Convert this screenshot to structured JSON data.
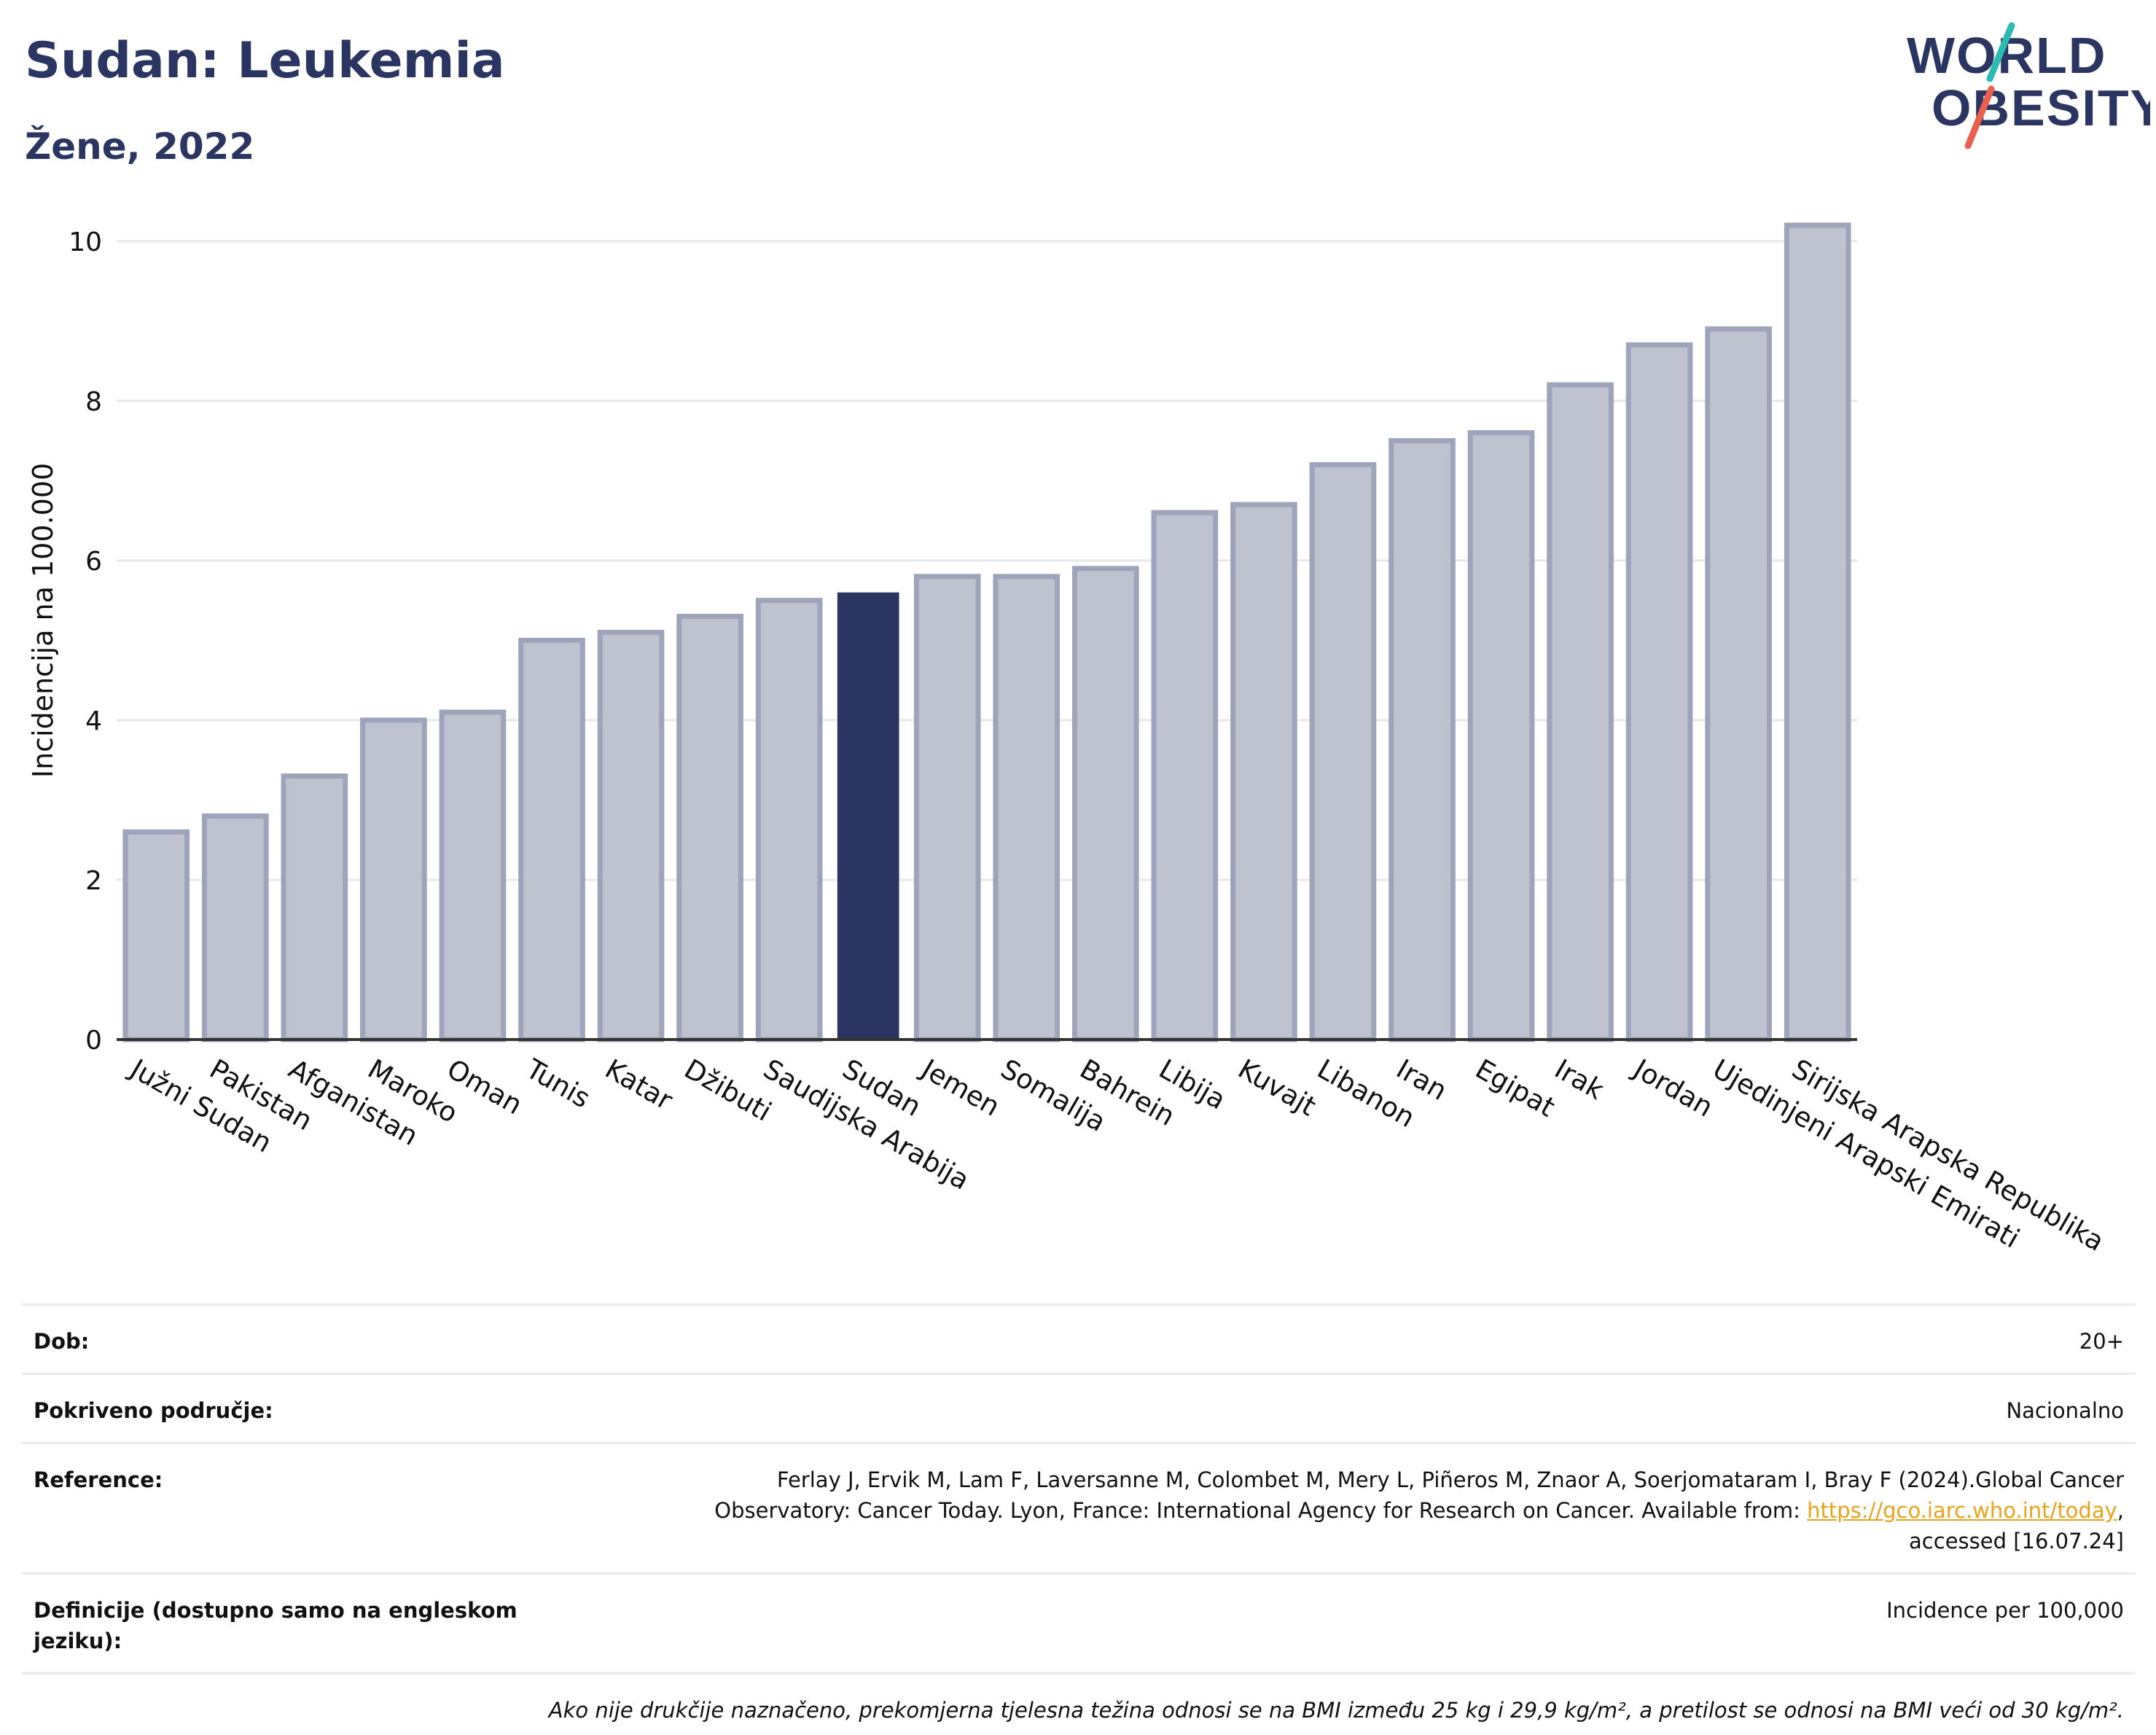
{
  "header": {
    "title": "Sudan: Leukemia",
    "subtitle": "Žene, 2022",
    "logo_line1": "WORLD",
    "logo_line2": "OBESITY"
  },
  "chart_data": {
    "type": "bar",
    "title": "Sudan: Leukemia",
    "subtitle": "Žene, 2022",
    "xlabel": "",
    "ylabel": "Incidencija na 100.000",
    "ylim": [
      0,
      10.5
    ],
    "yticks": [
      0,
      2,
      4,
      6,
      8,
      10
    ],
    "grid": true,
    "highlight": "Sudan",
    "categories": [
      "Južni Sudan",
      "Pakistan",
      "Afganistan",
      "Maroko",
      "Oman",
      "Tunis",
      "Katar",
      "Džibuti",
      "Saudijska Arabija",
      "Sudan",
      "Jemen",
      "Somalija",
      "Bahrein",
      "Libija",
      "Kuvajt",
      "Libanon",
      "Iran",
      "Egipat",
      "Irak",
      "Jordan",
      "Ujedinjeni Arapski Emirati",
      "Sirijska Arapska Republika"
    ],
    "values": [
      2.6,
      2.8,
      3.3,
      4.0,
      4.1,
      5.0,
      5.1,
      5.3,
      5.5,
      5.6,
      5.8,
      5.8,
      5.9,
      6.6,
      6.7,
      7.2,
      7.5,
      7.6,
      8.2,
      8.7,
      8.9,
      10.2
    ],
    "colors": {
      "bar": "#bfc3d0",
      "bar_border": "#9ea4ba",
      "highlight": "#2b3561",
      "grid": "#e6e8ef",
      "axis": "#333333"
    }
  },
  "info": {
    "rows": [
      {
        "label": "Dob:",
        "value": "20+"
      },
      {
        "label": "Pokriveno područje:",
        "value": "Nacionalno"
      },
      {
        "label": "Reference:",
        "value_line1": "Ferlay J, Ervik M, Lam F, Laversanne M, Colombet M, Mery L, Piñeros M, Znaor A, Soerjomataram I, Bray F (2024).Global Cancer",
        "value_line2_pre": "Observatory: Cancer Today. Lyon, France: International Agency for Research on Cancer. Available from: ",
        "link": "https://gco.iarc.who.int/today",
        "value_line2_post": ",",
        "value_line3": "accessed [16.07.24]"
      },
      {
        "label": "Definicije (dostupno samo na engleskom jeziku):",
        "value": "Incidence per 100,000"
      }
    ],
    "note": "Ako nije drukčije naznačeno, prekomjerna tjelesna težina odnosi se na BMI između 25 kg i 29,9 kg/m², a pretilost se odnosi na BMI veći od 30 kg/m²."
  }
}
